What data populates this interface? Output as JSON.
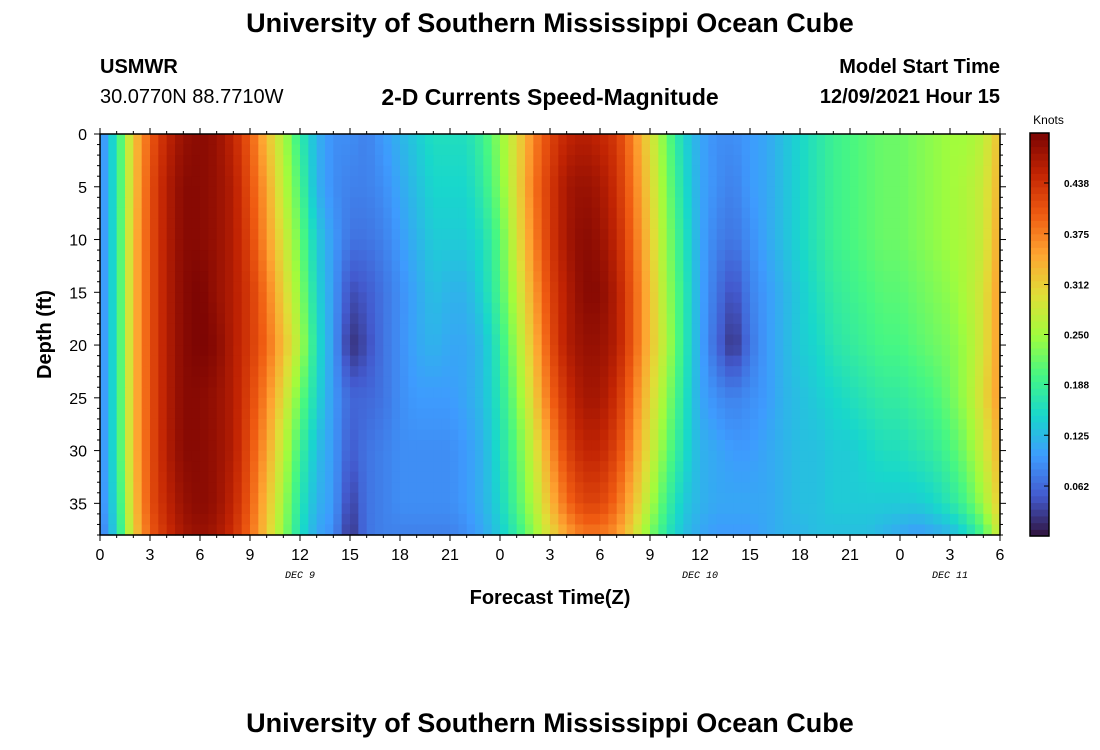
{
  "page": {
    "title_top": "University of Southern Mississippi Ocean Cube",
    "title_bottom": "University of Southern Mississippi Ocean Cube",
    "station_name": "USMWR",
    "coordinates": "30.0770N  88.7710W",
    "plot_title": "2-D Currents Speed-Magnitude",
    "model_start_label": "Model Start Time",
    "model_start_value": "12/09/2021 Hour 15"
  },
  "colors": {
    "background": "#ffffff",
    "text": "#000000"
  },
  "chart_data": {
    "type": "heatmap",
    "title": "2-D Currents Speed-Magnitude",
    "xlabel": "Forecast Time(Z)",
    "ylabel": "Depth (ft)",
    "xlim": [
      0,
      54
    ],
    "ylim": [
      0,
      38
    ],
    "y_inverted": true,
    "x_tick_values": [
      0,
      3,
      6,
      9,
      12,
      15,
      18,
      21,
      24,
      27,
      30,
      33,
      36,
      39,
      42,
      45,
      48,
      51,
      54
    ],
    "x_tick_labels": [
      "0",
      "3",
      "6",
      "9",
      "12",
      "15",
      "18",
      "21",
      "0",
      "3",
      "6",
      "9",
      "12",
      "15",
      "18",
      "21",
      "0",
      "3",
      "6"
    ],
    "y_tick_values": [
      0,
      5,
      10,
      15,
      20,
      25,
      30,
      35
    ],
    "y_tick_labels": [
      "0",
      "5",
      "10",
      "15",
      "20",
      "25",
      "30",
      "35"
    ],
    "date_labels": [
      {
        "x": 12,
        "label": "DEC 9"
      },
      {
        "x": 36,
        "label": "DEC 10"
      },
      {
        "x": 51,
        "label": "DEC 11"
      }
    ],
    "colorbar": {
      "title": "Knots",
      "min": 0,
      "max": 0.5,
      "ticks": [
        0.062,
        0.125,
        0.188,
        0.25,
        0.312,
        0.375,
        0.438
      ],
      "tick_labels": [
        "0.062",
        "0.125",
        "0.188",
        "0.250",
        "0.312",
        "0.375",
        "0.438"
      ]
    },
    "depths_ft": [
      0,
      5,
      10,
      15,
      20,
      25,
      30,
      35,
      38
    ],
    "times_h": [
      0,
      1,
      2,
      3,
      4,
      5,
      6,
      7,
      8,
      9,
      10,
      11,
      12,
      13,
      14,
      15,
      16,
      17,
      18,
      19,
      20,
      21,
      22,
      23,
      24,
      25,
      26,
      27,
      28,
      29,
      30,
      31,
      32,
      33,
      34,
      35,
      36,
      37,
      38,
      39,
      40,
      41,
      42,
      43,
      44,
      45,
      46,
      47,
      48,
      49,
      50,
      51,
      52,
      53,
      54
    ],
    "speed_knots": [
      [
        0.08,
        0.17,
        0.32,
        0.4,
        0.45,
        0.48,
        0.49,
        0.48,
        0.45,
        0.4,
        0.33,
        0.26,
        0.18,
        0.12,
        0.09,
        0.09,
        0.08,
        0.1,
        0.12,
        0.14,
        0.16,
        0.16,
        0.16,
        0.19,
        0.24,
        0.3,
        0.37,
        0.42,
        0.45,
        0.46,
        0.45,
        0.43,
        0.37,
        0.3,
        0.22,
        0.15,
        0.11,
        0.09,
        0.09,
        0.1,
        0.11,
        0.13,
        0.15,
        0.17,
        0.19,
        0.2,
        0.21,
        0.22,
        0.22,
        0.23,
        0.24,
        0.25,
        0.25,
        0.27,
        0.33
      ],
      [
        0.08,
        0.17,
        0.32,
        0.41,
        0.46,
        0.49,
        0.49,
        0.48,
        0.46,
        0.41,
        0.35,
        0.27,
        0.2,
        0.12,
        0.09,
        0.08,
        0.08,
        0.09,
        0.11,
        0.13,
        0.15,
        0.15,
        0.15,
        0.18,
        0.23,
        0.3,
        0.38,
        0.43,
        0.47,
        0.48,
        0.47,
        0.44,
        0.38,
        0.31,
        0.23,
        0.16,
        0.11,
        0.09,
        0.08,
        0.1,
        0.11,
        0.13,
        0.15,
        0.17,
        0.19,
        0.2,
        0.21,
        0.22,
        0.22,
        0.23,
        0.24,
        0.25,
        0.26,
        0.28,
        0.34
      ],
      [
        0.08,
        0.17,
        0.33,
        0.41,
        0.46,
        0.49,
        0.49,
        0.48,
        0.46,
        0.42,
        0.36,
        0.29,
        0.22,
        0.14,
        0.1,
        0.07,
        0.07,
        0.08,
        0.1,
        0.12,
        0.14,
        0.14,
        0.14,
        0.16,
        0.21,
        0.29,
        0.37,
        0.43,
        0.47,
        0.49,
        0.48,
        0.45,
        0.39,
        0.32,
        0.24,
        0.17,
        0.11,
        0.08,
        0.07,
        0.09,
        0.11,
        0.13,
        0.15,
        0.17,
        0.19,
        0.2,
        0.21,
        0.22,
        0.22,
        0.23,
        0.24,
        0.25,
        0.26,
        0.28,
        0.35
      ],
      [
        0.08,
        0.17,
        0.33,
        0.41,
        0.46,
        0.49,
        0.5,
        0.48,
        0.46,
        0.43,
        0.38,
        0.31,
        0.24,
        0.15,
        0.1,
        0.04,
        0.05,
        0.07,
        0.09,
        0.11,
        0.13,
        0.12,
        0.12,
        0.15,
        0.2,
        0.27,
        0.35,
        0.42,
        0.46,
        0.49,
        0.49,
        0.46,
        0.4,
        0.33,
        0.25,
        0.18,
        0.11,
        0.07,
        0.04,
        0.08,
        0.1,
        0.12,
        0.14,
        0.16,
        0.18,
        0.19,
        0.2,
        0.21,
        0.21,
        0.22,
        0.23,
        0.24,
        0.26,
        0.29,
        0.36
      ],
      [
        0.08,
        0.17,
        0.33,
        0.41,
        0.46,
        0.49,
        0.5,
        0.49,
        0.46,
        0.43,
        0.39,
        0.33,
        0.26,
        0.16,
        0.1,
        0.02,
        0.04,
        0.07,
        0.09,
        0.11,
        0.12,
        0.11,
        0.11,
        0.13,
        0.18,
        0.25,
        0.33,
        0.41,
        0.46,
        0.48,
        0.48,
        0.46,
        0.4,
        0.33,
        0.26,
        0.18,
        0.11,
        0.06,
        0.02,
        0.07,
        0.1,
        0.12,
        0.14,
        0.15,
        0.17,
        0.18,
        0.19,
        0.2,
        0.2,
        0.21,
        0.22,
        0.23,
        0.25,
        0.29,
        0.36
      ],
      [
        0.08,
        0.17,
        0.33,
        0.41,
        0.46,
        0.49,
        0.49,
        0.48,
        0.46,
        0.42,
        0.37,
        0.3,
        0.22,
        0.15,
        0.1,
        0.06,
        0.06,
        0.07,
        0.09,
        0.1,
        0.1,
        0.1,
        0.11,
        0.13,
        0.17,
        0.23,
        0.31,
        0.39,
        0.44,
        0.47,
        0.47,
        0.44,
        0.38,
        0.31,
        0.24,
        0.17,
        0.11,
        0.09,
        0.08,
        0.09,
        0.1,
        0.12,
        0.13,
        0.14,
        0.15,
        0.16,
        0.17,
        0.18,
        0.18,
        0.19,
        0.2,
        0.22,
        0.25,
        0.3,
        0.36
      ],
      [
        0.08,
        0.17,
        0.33,
        0.41,
        0.46,
        0.49,
        0.49,
        0.48,
        0.46,
        0.41,
        0.35,
        0.27,
        0.19,
        0.13,
        0.1,
        0.05,
        0.07,
        0.08,
        0.09,
        0.09,
        0.09,
        0.09,
        0.1,
        0.12,
        0.16,
        0.21,
        0.28,
        0.36,
        0.42,
        0.45,
        0.45,
        0.42,
        0.36,
        0.29,
        0.22,
        0.16,
        0.12,
        0.11,
        0.1,
        0.1,
        0.11,
        0.12,
        0.13,
        0.13,
        0.14,
        0.14,
        0.15,
        0.16,
        0.16,
        0.17,
        0.18,
        0.2,
        0.23,
        0.28,
        0.34
      ],
      [
        0.08,
        0.16,
        0.32,
        0.41,
        0.45,
        0.48,
        0.49,
        0.48,
        0.45,
        0.4,
        0.33,
        0.25,
        0.17,
        0.12,
        0.1,
        0.03,
        0.07,
        0.08,
        0.09,
        0.09,
        0.09,
        0.09,
        0.1,
        0.12,
        0.15,
        0.2,
        0.26,
        0.33,
        0.39,
        0.42,
        0.42,
        0.39,
        0.33,
        0.26,
        0.19,
        0.14,
        0.12,
        0.11,
        0.11,
        0.11,
        0.11,
        0.12,
        0.13,
        0.13,
        0.14,
        0.14,
        0.14,
        0.14,
        0.14,
        0.14,
        0.15,
        0.17,
        0.2,
        0.25,
        0.32
      ],
      [
        0.07,
        0.15,
        0.31,
        0.4,
        0.44,
        0.47,
        0.48,
        0.47,
        0.44,
        0.39,
        0.32,
        0.24,
        0.16,
        0.11,
        0.09,
        0.02,
        0.07,
        0.08,
        0.08,
        0.08,
        0.08,
        0.08,
        0.09,
        0.11,
        0.14,
        0.18,
        0.24,
        0.3,
        0.35,
        0.38,
        0.38,
        0.36,
        0.3,
        0.23,
        0.17,
        0.13,
        0.11,
        0.1,
        0.1,
        0.1,
        0.11,
        0.12,
        0.12,
        0.13,
        0.13,
        0.13,
        0.13,
        0.12,
        0.11,
        0.1,
        0.11,
        0.12,
        0.15,
        0.2,
        0.29
      ]
    ]
  }
}
